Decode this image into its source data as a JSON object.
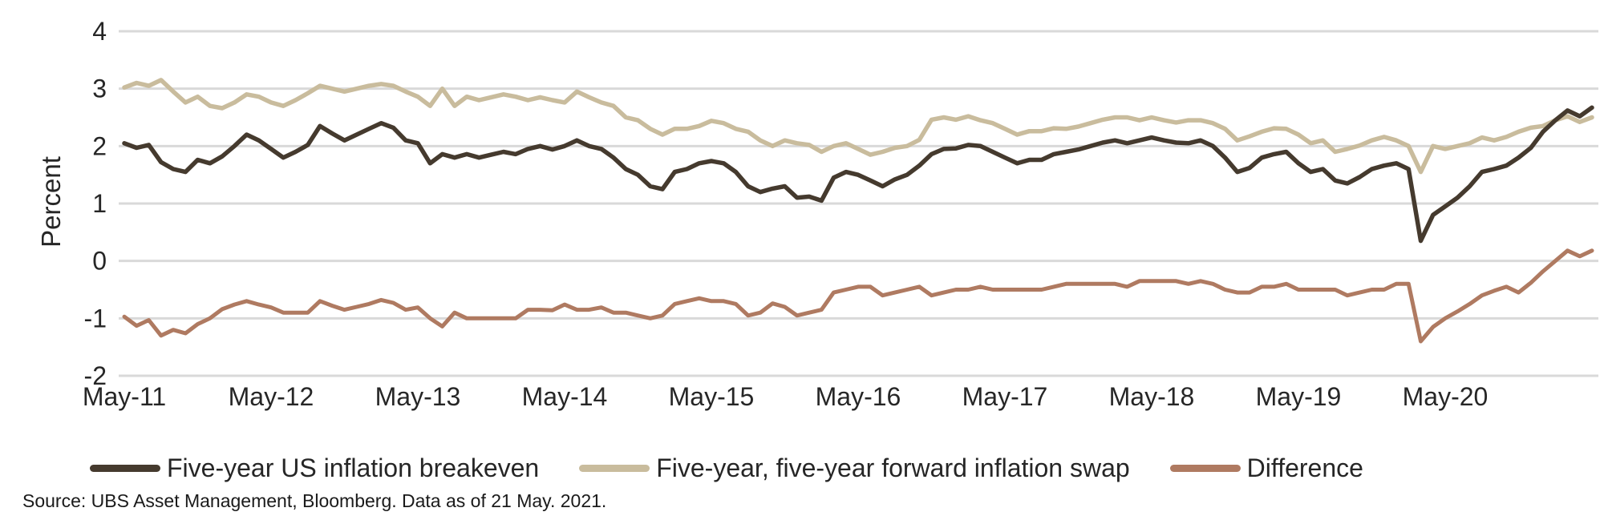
{
  "chart_data": {
    "type": "line",
    "title": "",
    "xlabel": "",
    "ylabel": "Percent",
    "ylim": [
      -2,
      4
    ],
    "yticks": [
      4,
      3,
      2,
      1,
      0,
      -1,
      -2
    ],
    "x_tick_labels": [
      "May-11",
      "May-12",
      "May-13",
      "May-14",
      "May-15",
      "May-16",
      "May-17",
      "May-18",
      "May-19",
      "May-20"
    ],
    "x_unit": "months, May-2011 through May-2021",
    "grid": true,
    "grid_color": "#d9d9d9",
    "text_color": "#262626",
    "legend_position": "bottom",
    "series": [
      {
        "name": "Five-year US inflation breakeven",
        "color": "#453a2e",
        "line_width": 5.5,
        "values": [
          2.05,
          1.97,
          2.02,
          1.72,
          1.6,
          1.55,
          1.76,
          1.7,
          1.82,
          2.0,
          2.2,
          2.1,
          1.95,
          1.8,
          1.9,
          2.02,
          2.35,
          2.22,
          2.1,
          2.2,
          2.3,
          2.4,
          2.32,
          2.1,
          2.05,
          1.7,
          1.86,
          1.8,
          1.86,
          1.8,
          1.85,
          1.9,
          1.86,
          1.95,
          2.0,
          1.94,
          2.0,
          2.1,
          2.0,
          1.95,
          1.8,
          1.6,
          1.5,
          1.3,
          1.25,
          1.55,
          1.6,
          1.7,
          1.74,
          1.7,
          1.55,
          1.3,
          1.2,
          1.26,
          1.3,
          1.1,
          1.12,
          1.05,
          1.45,
          1.55,
          1.5,
          1.4,
          1.3,
          1.42,
          1.5,
          1.66,
          1.86,
          1.95,
          1.96,
          2.02,
          2.0,
          1.9,
          1.8,
          1.7,
          1.76,
          1.76,
          1.86,
          1.9,
          1.94,
          2.0,
          2.06,
          2.1,
          2.05,
          2.1,
          2.15,
          2.1,
          2.06,
          2.05,
          2.1,
          2.0,
          1.8,
          1.55,
          1.62,
          1.8,
          1.86,
          1.9,
          1.7,
          1.55,
          1.6,
          1.4,
          1.35,
          1.46,
          1.6,
          1.66,
          1.7,
          1.6,
          0.35,
          0.8,
          0.95,
          1.1,
          1.3,
          1.55,
          1.6,
          1.66,
          1.8,
          1.97,
          2.25,
          2.45,
          2.62,
          2.52,
          2.67
        ]
      },
      {
        "name": "Five-year, five-year forward inflation swap",
        "color": "#c9bc9d",
        "line_width": 5.5,
        "values": [
          3.02,
          3.1,
          3.05,
          3.15,
          2.95,
          2.76,
          2.86,
          2.7,
          2.66,
          2.76,
          2.9,
          2.86,
          2.76,
          2.7,
          2.8,
          2.92,
          3.05,
          3.0,
          2.95,
          3.0,
          3.05,
          3.08,
          3.05,
          2.95,
          2.86,
          2.7,
          3.0,
          2.7,
          2.86,
          2.8,
          2.85,
          2.9,
          2.86,
          2.8,
          2.85,
          2.8,
          2.76,
          2.95,
          2.85,
          2.76,
          2.7,
          2.5,
          2.45,
          2.3,
          2.2,
          2.3,
          2.3,
          2.35,
          2.44,
          2.4,
          2.3,
          2.25,
          2.1,
          2.0,
          2.1,
          2.05,
          2.02,
          1.9,
          2.0,
          2.05,
          1.95,
          1.85,
          1.9,
          1.97,
          2.0,
          2.11,
          2.46,
          2.5,
          2.46,
          2.52,
          2.45,
          2.4,
          2.3,
          2.2,
          2.26,
          2.26,
          2.31,
          2.3,
          2.34,
          2.4,
          2.46,
          2.5,
          2.5,
          2.45,
          2.5,
          2.45,
          2.41,
          2.45,
          2.45,
          2.4,
          2.3,
          2.1,
          2.17,
          2.25,
          2.31,
          2.3,
          2.2,
          2.05,
          2.1,
          1.9,
          1.95,
          2.01,
          2.1,
          2.16,
          2.1,
          2.0,
          1.55,
          2.0,
          1.95,
          2.0,
          2.05,
          2.15,
          2.1,
          2.16,
          2.25,
          2.32,
          2.35,
          2.45,
          2.52,
          2.42,
          2.5
        ]
      },
      {
        "name": "Difference",
        "color": "#af7a61",
        "line_width": 5,
        "values": [
          -0.97,
          -1.13,
          -1.03,
          -1.3,
          -1.2,
          -1.26,
          -1.1,
          -1.0,
          -0.84,
          -0.76,
          -0.7,
          -0.76,
          -0.81,
          -0.9,
          -0.9,
          -0.9,
          -0.7,
          -0.78,
          -0.85,
          -0.8,
          -0.75,
          -0.68,
          -0.73,
          -0.85,
          -0.81,
          -1.0,
          -1.14,
          -0.9,
          -1.0,
          -1.0,
          -1.0,
          -1.0,
          -1.0,
          -0.85,
          -0.85,
          -0.86,
          -0.76,
          -0.85,
          -0.85,
          -0.81,
          -0.9,
          -0.9,
          -0.95,
          -1.0,
          -0.95,
          -0.75,
          -0.7,
          -0.65,
          -0.7,
          -0.7,
          -0.75,
          -0.95,
          -0.9,
          -0.74,
          -0.8,
          -0.95,
          -0.9,
          -0.85,
          -0.55,
          -0.5,
          -0.45,
          -0.45,
          -0.6,
          -0.55,
          -0.5,
          -0.45,
          -0.6,
          -0.55,
          -0.5,
          -0.5,
          -0.45,
          -0.5,
          -0.5,
          -0.5,
          -0.5,
          -0.5,
          -0.45,
          -0.4,
          -0.4,
          -0.4,
          -0.4,
          -0.4,
          -0.45,
          -0.35,
          -0.35,
          -0.35,
          -0.35,
          -0.4,
          -0.35,
          -0.4,
          -0.5,
          -0.55,
          -0.55,
          -0.45,
          -0.45,
          -0.4,
          -0.5,
          -0.5,
          -0.5,
          -0.5,
          -0.6,
          -0.55,
          -0.5,
          -0.5,
          -0.4,
          -0.4,
          -1.4,
          -1.15,
          -1.0,
          -0.88,
          -0.75,
          -0.6,
          -0.52,
          -0.45,
          -0.55,
          -0.38,
          -0.18,
          0.0,
          0.18,
          0.08,
          0.18
        ]
      }
    ]
  },
  "source": {
    "text": "Source: UBS Asset Management, Bloomberg. Data as of 21 May. 2021."
  }
}
